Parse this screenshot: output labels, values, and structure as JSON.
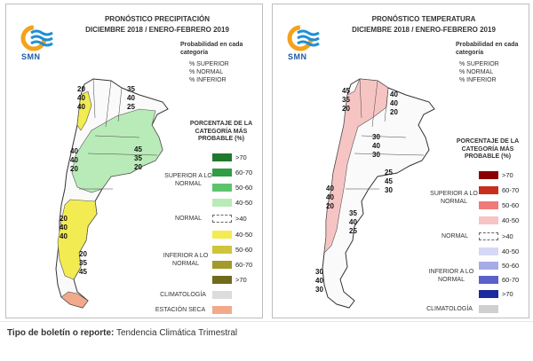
{
  "precip": {
    "title1": "PRONÓSTICO PRECIPITACIÓN",
    "title2": "DICIEMBRE 2018 / ENERO-FEBRERO 2019",
    "prob_head": "Probabilidad en cada categoría",
    "cat_sup": "% SUPERIOR",
    "cat_norm": "% NORMAL",
    "cat_inf": "% INFERIOR",
    "pct_head": "PORCENTAJE DE LA CATEGORÍA MÁS PROBABLE (%)",
    "superior_label": "SUPERIOR A LO NORMAL",
    "normal_label": "NORMAL",
    "inferior_label": "INFERIOR A LO NORMAL",
    "climatologia_label": "CLIMATOLOGÍA",
    "estacion_seca_label": "ESTACIÓN SECA",
    "sup_ranges": [
      ">70",
      "60-70",
      "50-60",
      "40-50"
    ],
    "sup_colors": [
      "#1e7a2e",
      "#2f9e45",
      "#5cc46d",
      "#b9ebb9"
    ],
    "normal_range": ">40",
    "inf_ranges": [
      "40-50",
      "50-60",
      "60-70",
      ">70"
    ],
    "inf_colors": [
      "#f2ec52",
      "#cfc43a",
      "#a39a2c",
      "#6f6a1c"
    ],
    "clim_color": "#dcdcdc",
    "seca_color": "#f2a98a",
    "map_labels": [
      "20",
      "40",
      "40",
      "35",
      "40",
      "25",
      "40",
      "40",
      "20",
      "45",
      "35",
      "20",
      "20",
      "40",
      "40",
      "20",
      "35",
      "45"
    ]
  },
  "temp": {
    "title1": "PRONÓSTICO TEMPERATURA",
    "title2": "DICIEMBRE 2018 / ENERO-FEBRERO 2019",
    "prob_head": "Probabilidad en cada categoría",
    "cat_sup": "% SUPERIOR",
    "cat_norm": "% NORMAL",
    "cat_inf": "% INFERIOR",
    "pct_head": "PORCENTAJE DE LA CATEGORÍA MÁS PROBABLE (%)",
    "superior_label": "SUPERIOR A LO NORMAL",
    "normal_label": "NORMAL",
    "inferior_label": "INFERIOR A LO NORMAL",
    "climatologia_label": "CLIMATOLOGÍA",
    "sup_ranges": [
      ">70",
      "60-70",
      "50-60",
      "40-50"
    ],
    "sup_colors": [
      "#8b0000",
      "#c8301e",
      "#f07a7a",
      "#f7c4c4"
    ],
    "normal_range": ">40",
    "inf_ranges": [
      "40-50",
      "50-60",
      "60-70",
      ">70"
    ],
    "inf_colors": [
      "#d6d8f5",
      "#a6abe8",
      "#5a60c8",
      "#1a2a9a"
    ],
    "clim_color": "#cfcfcf",
    "map_labels": [
      "45",
      "35",
      "20",
      "40",
      "40",
      "20",
      "30",
      "40",
      "30",
      "25",
      "45",
      "30",
      "40",
      "40",
      "20",
      "35",
      "40",
      "25",
      "30",
      "40",
      "30"
    ]
  },
  "logo": {
    "text": "SMN"
  },
  "footer": {
    "label": "Tipo de boletín o reporte:",
    "value": "Tendencia Climática Trimestral"
  }
}
